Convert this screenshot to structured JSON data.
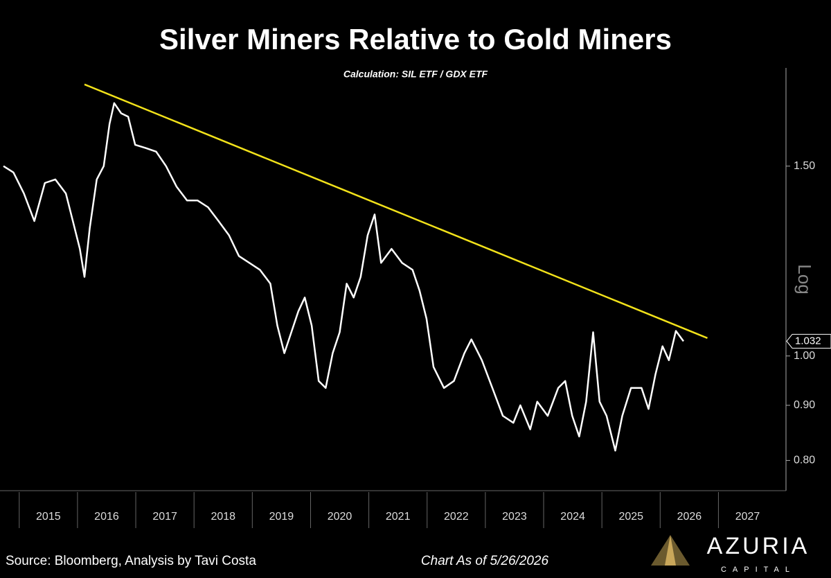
{
  "chart_data": {
    "type": "line",
    "title": "Silver Miners Relative to Gold Miners",
    "subtitle": "Calculation: SIL ETF / GDX ETF",
    "y_axis_label": "Log",
    "log_scale": true,
    "grid": false,
    "xlim": [
      2014.67,
      2028.1
    ],
    "ylim": [
      0.75,
      1.85
    ],
    "xticks": [
      2015,
      2016,
      2017,
      2018,
      2019,
      2020,
      2021,
      2022,
      2023,
      2024,
      2025,
      2026,
      2027
    ],
    "yticks": [
      {
        "value": 0.8,
        "label": "0.80"
      },
      {
        "value": 0.9,
        "label": "0.90"
      },
      {
        "value": 1.0,
        "label": "1.00"
      },
      {
        "value": 1.5,
        "label": "1.50"
      }
    ],
    "series": [
      {
        "color": "#ffffff",
        "x": [
          2014.73,
          2014.9,
          2015.08,
          2015.26,
          2015.44,
          2015.62,
          2015.8,
          2015.92,
          2016.04,
          2016.12,
          2016.21,
          2016.33,
          2016.45,
          2016.55,
          2016.63,
          2016.75,
          2016.87,
          2016.99,
          2017.17,
          2017.35,
          2017.52,
          2017.7,
          2017.88,
          2018.06,
          2018.24,
          2018.42,
          2018.6,
          2018.77,
          2018.95,
          2019.13,
          2019.31,
          2019.43,
          2019.55,
          2019.67,
          2019.79,
          2019.9,
          2020.02,
          2020.14,
          2020.26,
          2020.38,
          2020.5,
          2020.62,
          2020.74,
          2020.86,
          2020.98,
          2021.1,
          2021.21,
          2021.39,
          2021.57,
          2021.75,
          2021.87,
          2021.99,
          2022.11,
          2022.29,
          2022.46,
          2022.64,
          2022.76,
          2022.94,
          2023.12,
          2023.3,
          2023.48,
          2023.6,
          2023.77,
          2023.89,
          2024.07,
          2024.25,
          2024.37,
          2024.49,
          2024.61,
          2024.73,
          2024.85,
          2024.96,
          2025.08,
          2025.23,
          2025.35,
          2025.5,
          2025.68,
          2025.8,
          2025.92,
          2026.04,
          2026.15,
          2026.27,
          2026.4
        ],
        "values": [
          1.5,
          1.48,
          1.415,
          1.334,
          1.447,
          1.458,
          1.415,
          1.334,
          1.257,
          1.184,
          1.314,
          1.458,
          1.5,
          1.642,
          1.716,
          1.679,
          1.667,
          1.57,
          1.559,
          1.547,
          1.5,
          1.436,
          1.394,
          1.394,
          1.374,
          1.334,
          1.294,
          1.238,
          1.22,
          1.202,
          1.167,
          1.067,
          1.006,
          1.052,
          1.1,
          1.133,
          1.067,
          0.948,
          0.934,
          1.006,
          1.052,
          1.167,
          1.133,
          1.184,
          1.294,
          1.353,
          1.22,
          1.257,
          1.22,
          1.202,
          1.15,
          1.083,
          0.977,
          0.934,
          0.948,
          1.006,
          1.036,
          0.991,
          0.934,
          0.88,
          0.867,
          0.9,
          0.855,
          0.907,
          0.88,
          0.934,
          0.948,
          0.88,
          0.842,
          0.907,
          1.052,
          0.907,
          0.88,
          0.817,
          0.88,
          0.934,
          0.934,
          0.893,
          0.962,
          1.021,
          0.991,
          1.055,
          1.032
        ]
      }
    ],
    "trendline": {
      "color": "#f2e21a",
      "x": [
        2016.12,
        2026.81
      ],
      "values": [
        1.786,
        1.039
      ]
    },
    "last_value_label": 1.032,
    "source": "Source: Bloomberg, Analysis by Tavi Costa",
    "as_of": "Chart As of 5/26/2026",
    "logo": {
      "name": "AZURIA",
      "tagline": "CAPITAL"
    }
  }
}
